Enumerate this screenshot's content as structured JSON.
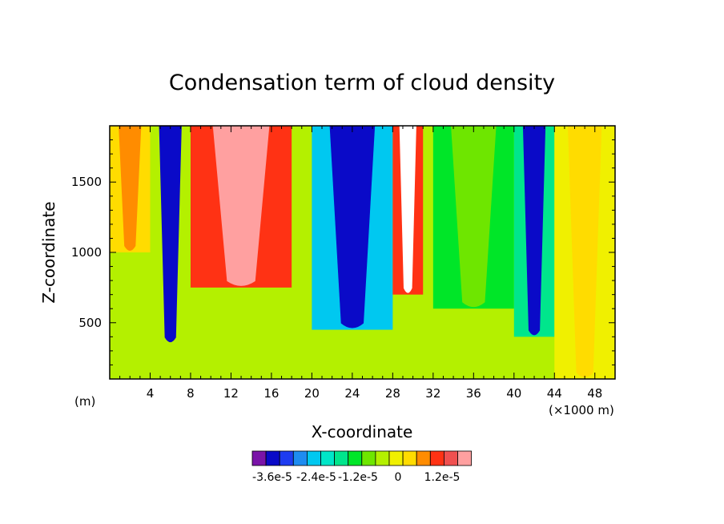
{
  "chart_data": {
    "type": "heatmap",
    "title": "Condensation term of cloud density",
    "xlabel": "X-coordinate",
    "ylabel": "Z-coordinate",
    "x_unit_left": "(m)",
    "x_unit_right": "(×1000 m)",
    "xlim": [
      0,
      50
    ],
    "ylim": [
      100,
      1900
    ],
    "x_ticks": [
      4,
      8,
      12,
      16,
      20,
      24,
      28,
      32,
      36,
      40,
      44,
      48
    ],
    "y_ticks": [
      500,
      1000,
      1500
    ],
    "colorbar": {
      "colors": [
        "#7a14a8",
        "#0a0ac8",
        "#1e3cf0",
        "#1e8cf0",
        "#00c8f0",
        "#00e6c8",
        "#00e68c",
        "#00e628",
        "#6ee600",
        "#b4f000",
        "#f0f000",
        "#ffdc00",
        "#ff8c00",
        "#ff3214",
        "#f05050",
        "#ffa0a0"
      ],
      "labels": [
        "-3.6e-5",
        "-2.4e-5",
        "-1.2e-5",
        "0",
        "1.2e-5"
      ]
    },
    "columns": [
      {
        "x0": 0,
        "x1": 4,
        "base": "#ffdc00",
        "feature": "positive core",
        "peak": "#ff8c00",
        "zmin": 1000,
        "zmax": 1900
      },
      {
        "x0": 4,
        "x1": 8,
        "base": "#b4f000",
        "feature": "negative core",
        "peak": "#0a0ac8",
        "zmin": 350,
        "zmax": 1900
      },
      {
        "x0": 8,
        "x1": 18,
        "base": "#ff3214",
        "feature": "positive core",
        "peak": "#ffa0a0",
        "zmin": 750,
        "zmax": 1900
      },
      {
        "x0": 20,
        "x1": 28,
        "base": "#00c8f0",
        "feature": "negative core",
        "peak": "#0a0ac8",
        "zmin": 450,
        "zmax": 1900
      },
      {
        "x0": 28,
        "x1": 31,
        "base": "#ff3214",
        "feature": "positive core",
        "peak": "#ffffff",
        "zmin": 700,
        "zmax": 1900
      },
      {
        "x0": 32,
        "x1": 40,
        "base": "#00e628",
        "feature": "mixed",
        "peak": "#6ee600",
        "zmin": 600,
        "zmax": 1900
      },
      {
        "x0": 40,
        "x1": 44,
        "base": "#00e68c",
        "feature": "negative core",
        "peak": "#0a0ac8",
        "zmin": 400,
        "zmax": 1900
      },
      {
        "x0": 44,
        "x1": 50,
        "base": "#f0f000",
        "feature": "near zero",
        "peak": "#ffdc00",
        "zmin": 100,
        "zmax": 1900
      }
    ]
  }
}
